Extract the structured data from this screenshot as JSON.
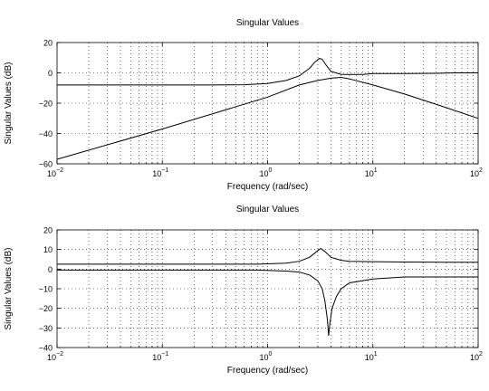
{
  "chart_data": [
    {
      "type": "line",
      "title": "Singular Values",
      "xlabel": "Frequency (rad/sec)",
      "ylabel": "Singular Values (dB)",
      "x_scale": "log",
      "xlim": [
        0.01,
        100
      ],
      "ylim": [
        -60,
        20
      ],
      "grid": true,
      "x_ticks": [
        {
          "base": "10",
          "exp": "−2"
        },
        {
          "base": "10",
          "exp": "−1"
        },
        {
          "base": "10",
          "exp": "0"
        },
        {
          "base": "10",
          "exp": "1"
        },
        {
          "base": "10",
          "exp": "2"
        }
      ],
      "y_ticks": [
        "20",
        "0",
        "−20",
        "−40",
        "−60"
      ],
      "y_tick_values": [
        20,
        0,
        -20,
        -40,
        -60
      ],
      "series": [
        {
          "x": [
            0.01,
            0.1,
            0.3,
            0.6,
            1,
            1.5,
            2,
            2.5,
            2.8,
            3.1,
            3.3,
            3.6,
            4,
            5,
            6,
            8,
            10,
            20,
            40,
            60,
            100
          ],
          "y": [
            -8,
            -8,
            -8,
            -7.8,
            -7,
            -5,
            -2,
            3,
            7,
            9.5,
            9,
            5,
            1,
            -1,
            -1,
            -1,
            -0.5,
            -0.5,
            -0.3,
            0,
            0
          ]
        },
        {
          "x": [
            0.01,
            0.1,
            1,
            2,
            3,
            4,
            5,
            6,
            10,
            20,
            50,
            100
          ],
          "y": [
            -57,
            -37,
            -16,
            -8,
            -5,
            -3.5,
            -3,
            -4,
            -8,
            -14,
            -23,
            -30
          ]
        }
      ]
    },
    {
      "type": "line",
      "title": "Singular Values",
      "xlabel": "Frequency (rad/sec)",
      "ylabel": "Singular Values (dB)",
      "x_scale": "log",
      "xlim": [
        0.01,
        100
      ],
      "ylim": [
        -40,
        20
      ],
      "grid": true,
      "x_ticks": [
        {
          "base": "10",
          "exp": "−2"
        },
        {
          "base": "10",
          "exp": "−1"
        },
        {
          "base": "10",
          "exp": "0"
        },
        {
          "base": "10",
          "exp": "1"
        },
        {
          "base": "10",
          "exp": "2"
        }
      ],
      "y_ticks": [
        "20",
        "10",
        "0",
        "−10",
        "−20",
        "−30",
        "−40"
      ],
      "y_tick_values": [
        20,
        10,
        0,
        -10,
        -20,
        -30,
        -40
      ],
      "series": [
        {
          "x": [
            0.01,
            0.1,
            0.8,
            1.5,
            2,
            2.5,
            3,
            3.2,
            3.5,
            4,
            5,
            6,
            10,
            20,
            50,
            100
          ],
          "y": [
            2.5,
            2.5,
            2.5,
            3,
            4,
            6,
            9.5,
            10.5,
            9,
            6,
            4.5,
            4,
            3.8,
            3.6,
            3.5,
            3.5
          ]
        },
        {
          "x": [
            0.01,
            0.1,
            0.8,
            1.5,
            2,
            2.5,
            3,
            3.3,
            3.5,
            3.7,
            3.8,
            3.9,
            4.1,
            4.5,
            5,
            6,
            10,
            20,
            50,
            100
          ],
          "y": [
            -0.5,
            -0.5,
            -0.5,
            -1,
            -1.5,
            -3,
            -6,
            -10,
            -16,
            -26,
            -34,
            -28,
            -20,
            -14,
            -10,
            -7,
            -5,
            -4,
            -4,
            -4
          ]
        }
      ]
    }
  ]
}
